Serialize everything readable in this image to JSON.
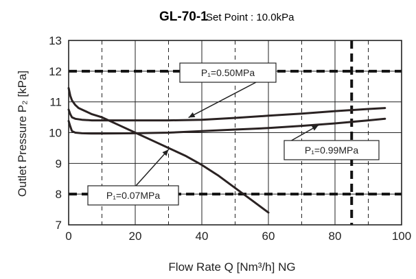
{
  "chart_data": {
    "type": "line",
    "title": "GL-70-1",
    "subtitle": "Set Point : 10.0kPa",
    "xlabel": "Flow Rate Q [Nm³/h] NG",
    "ylabel": "Outlet Pressure P₂ [kPa]",
    "xlim": [
      0,
      100
    ],
    "ylim": [
      7,
      13
    ],
    "x_ticks": [
      "0",
      "20",
      "40",
      "60",
      "80",
      "100"
    ],
    "y_ticks": [
      "7",
      "8",
      "9",
      "10",
      "11",
      "12",
      "13"
    ],
    "grid": true,
    "reference_lines": [
      {
        "axis": "y",
        "value": 12,
        "style": "dashed"
      },
      {
        "axis": "y",
        "value": 8,
        "style": "dashed"
      },
      {
        "axis": "x",
        "value": 85,
        "style": "dashed"
      }
    ],
    "series": [
      {
        "name": "P₁=0.50MPa",
        "x": [
          0,
          0.5,
          1,
          2,
          4,
          7,
          10,
          15,
          20,
          30,
          40,
          50,
          60,
          70,
          80,
          90,
          95
        ],
        "y": [
          10.75,
          10.6,
          10.5,
          10.45,
          10.42,
          10.4,
          10.4,
          10.4,
          10.4,
          10.4,
          10.42,
          10.48,
          10.55,
          10.62,
          10.7,
          10.77,
          10.8
        ]
      },
      {
        "name": "P₁=0.99MPa",
        "x": [
          0,
          0.5,
          1,
          2,
          4,
          7,
          10,
          20,
          30,
          40,
          50,
          60,
          70,
          80,
          90,
          95
        ],
        "y": [
          10.38,
          10.2,
          10.05,
          10.0,
          9.98,
          9.97,
          9.97,
          9.98,
          10.0,
          10.05,
          10.1,
          10.15,
          10.22,
          10.3,
          10.4,
          10.45
        ]
      },
      {
        "name": "P₁=0.07MPa",
        "x": [
          0,
          0.5,
          1,
          2,
          3,
          5,
          7,
          10,
          15,
          20,
          25,
          30,
          35,
          40,
          45,
          50,
          55,
          60
        ],
        "y": [
          11.45,
          11.2,
          11.05,
          10.9,
          10.8,
          10.7,
          10.6,
          10.5,
          10.25,
          10.0,
          9.75,
          9.5,
          9.25,
          8.95,
          8.6,
          8.2,
          7.8,
          7.4
        ]
      }
    ],
    "annotations": [
      {
        "text": "P₁=0.50MPa"
      },
      {
        "text": "P₁=0.99MPa"
      },
      {
        "text": "P₁=0.07MPa"
      }
    ]
  }
}
